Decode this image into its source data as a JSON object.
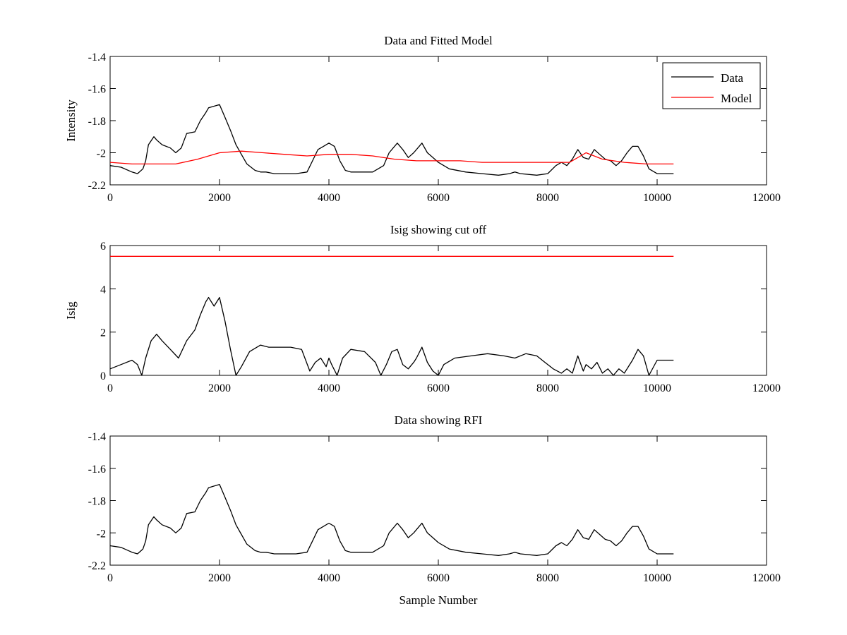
{
  "colors": {
    "data": "#000000",
    "model": "#ff0000",
    "axes": "#000000",
    "background": "#ffffff"
  },
  "chart_data": [
    {
      "type": "line",
      "title": "Data and Fitted Model",
      "xlabel": "",
      "ylabel": "Intensity",
      "xlim": [
        0,
        12000
      ],
      "ylim": [
        -2.2,
        -1.4
      ],
      "xticks": [
        "0",
        "2000",
        "4000",
        "6000",
        "8000",
        "10000",
        "12000"
      ],
      "yticks": [
        "-1.4",
        "-1.6",
        "-1.8",
        "-2",
        "-2.2"
      ],
      "legend": {
        "position": "top-right",
        "entries": [
          "Data",
          "Model"
        ]
      },
      "series": [
        {
          "name": "Data",
          "color": "#000000",
          "x": [
            0,
            200,
            400,
            500,
            600,
            650,
            700,
            800,
            850,
            950,
            1100,
            1200,
            1300,
            1400,
            1550,
            1650,
            1750,
            1800,
            1900,
            2000,
            2100,
            2200,
            2300,
            2400,
            2500,
            2650,
            2750,
            2850,
            3000,
            3200,
            3400,
            3600,
            3700,
            3800,
            3900,
            4000,
            4100,
            4200,
            4300,
            4400,
            4600,
            4800,
            5000,
            5100,
            5250,
            5350,
            5450,
            5550,
            5650,
            5700,
            5800,
            5900,
            6000,
            6200,
            6500,
            6800,
            7100,
            7300,
            7400,
            7500,
            7800,
            8000,
            8150,
            8250,
            8350,
            8450,
            8550,
            8650,
            8750,
            8850,
            8950,
            9050,
            9150,
            9250,
            9350,
            9450,
            9550,
            9650,
            9750,
            9850,
            10000,
            10300
          ],
          "y": [
            -2.08,
            -2.09,
            -2.12,
            -2.13,
            -2.1,
            -2.05,
            -1.95,
            -1.9,
            -1.92,
            -1.95,
            -1.97,
            -2.0,
            -1.97,
            -1.88,
            -1.87,
            -1.8,
            -1.75,
            -1.72,
            -1.71,
            -1.7,
            -1.78,
            -1.86,
            -1.95,
            -2.01,
            -2.07,
            -2.11,
            -2.12,
            -2.12,
            -2.13,
            -2.13,
            -2.13,
            -2.12,
            -2.05,
            -1.98,
            -1.96,
            -1.94,
            -1.96,
            -2.05,
            -2.11,
            -2.12,
            -2.12,
            -2.12,
            -2.08,
            -2.0,
            -1.94,
            -1.98,
            -2.03,
            -2.0,
            -1.96,
            -1.94,
            -2.0,
            -2.03,
            -2.06,
            -2.1,
            -2.12,
            -2.13,
            -2.14,
            -2.13,
            -2.12,
            -2.13,
            -2.14,
            -2.13,
            -2.08,
            -2.06,
            -2.08,
            -2.04,
            -1.98,
            -2.03,
            -2.04,
            -1.98,
            -2.01,
            -2.04,
            -2.05,
            -2.08,
            -2.05,
            -2.0,
            -1.96,
            -1.96,
            -2.02,
            -2.1,
            -2.13,
            -2.13
          ]
        },
        {
          "name": "Model",
          "color": "#ff0000",
          "x": [
            0,
            400,
            800,
            1200,
            1600,
            2000,
            2400,
            2800,
            3200,
            3600,
            4000,
            4400,
            4800,
            5200,
            5600,
            6000,
            6400,
            6800,
            7200,
            7600,
            8000,
            8400,
            8700,
            9000,
            9400,
            9800,
            10300
          ],
          "y": [
            -2.06,
            -2.07,
            -2.07,
            -2.07,
            -2.04,
            -2.0,
            -1.99,
            -2.0,
            -2.01,
            -2.02,
            -2.01,
            -2.01,
            -2.02,
            -2.04,
            -2.05,
            -2.05,
            -2.05,
            -2.06,
            -2.06,
            -2.06,
            -2.06,
            -2.06,
            -2.0,
            -2.04,
            -2.06,
            -2.07,
            -2.07
          ]
        }
      ]
    },
    {
      "type": "line",
      "title": "Isig showing cut off",
      "xlabel": "",
      "ylabel": "Isig",
      "xlim": [
        0,
        12000
      ],
      "ylim": [
        0,
        6
      ],
      "xticks": [
        "0",
        "2000",
        "4000",
        "6000",
        "8000",
        "10000",
        "12000"
      ],
      "yticks": [
        "6",
        "4",
        "2",
        "0"
      ],
      "series": [
        {
          "color": "#000000",
          "x": [
            0,
            200,
            400,
            500,
            580,
            650,
            750,
            850,
            950,
            1100,
            1250,
            1400,
            1550,
            1650,
            1750,
            1800,
            1900,
            2000,
            2100,
            2200,
            2300,
            2400,
            2550,
            2750,
            2900,
            3100,
            3300,
            3500,
            3650,
            3750,
            3850,
            3950,
            4000,
            4050,
            4150,
            4250,
            4400,
            4650,
            4850,
            4950,
            5050,
            5150,
            5250,
            5350,
            5450,
            5550,
            5600,
            5700,
            5800,
            5900,
            6000,
            6100,
            6300,
            6600,
            6900,
            7200,
            7400,
            7600,
            7800,
            7950,
            8100,
            8250,
            8350,
            8450,
            8550,
            8650,
            8700,
            8800,
            8900,
            9000,
            9100,
            9200,
            9300,
            9400,
            9550,
            9650,
            9750,
            9850,
            10000,
            10300
          ],
          "y": [
            0.3,
            0.5,
            0.7,
            0.5,
            0.0,
            0.8,
            1.6,
            1.9,
            1.6,
            1.2,
            0.8,
            1.6,
            2.1,
            2.8,
            3.4,
            3.6,
            3.2,
            3.6,
            2.5,
            1.2,
            0.0,
            0.4,
            1.1,
            1.4,
            1.3,
            1.3,
            1.3,
            1.2,
            0.2,
            0.6,
            0.8,
            0.4,
            0.8,
            0.5,
            0.0,
            0.8,
            1.2,
            1.1,
            0.6,
            0.0,
            0.5,
            1.1,
            1.2,
            0.5,
            0.3,
            0.6,
            0.8,
            1.3,
            0.6,
            0.2,
            0.0,
            0.5,
            0.8,
            0.9,
            1.0,
            0.9,
            0.8,
            1.0,
            0.9,
            0.6,
            0.3,
            0.1,
            0.3,
            0.1,
            0.9,
            0.2,
            0.5,
            0.3,
            0.6,
            0.1,
            0.3,
            0.0,
            0.3,
            0.1,
            0.7,
            1.2,
            0.9,
            0.0,
            0.7,
            0.7
          ]
        },
        {
          "color": "#ff0000",
          "x": [
            0,
            10300
          ],
          "y": [
            5.5,
            5.5
          ]
        }
      ]
    },
    {
      "type": "line",
      "title": "Data showing RFI",
      "xlabel": "Sample Number",
      "ylabel": "",
      "xlim": [
        0,
        12000
      ],
      "ylim": [
        -2.2,
        -1.4
      ],
      "xticks": [
        "0",
        "2000",
        "4000",
        "6000",
        "8000",
        "10000",
        "12000"
      ],
      "yticks": [
        "-1.4",
        "-1.6",
        "-1.8",
        "-2",
        "-2.2"
      ],
      "series": [
        {
          "color": "#000000",
          "x": [
            0,
            200,
            400,
            500,
            600,
            650,
            700,
            800,
            850,
            950,
            1100,
            1200,
            1300,
            1400,
            1550,
            1650,
            1750,
            1800,
            1900,
            2000,
            2100,
            2200,
            2300,
            2400,
            2500,
            2650,
            2750,
            2850,
            3000,
            3200,
            3400,
            3600,
            3700,
            3800,
            3900,
            4000,
            4100,
            4200,
            4300,
            4400,
            4600,
            4800,
            5000,
            5100,
            5250,
            5350,
            5450,
            5550,
            5650,
            5700,
            5800,
            5900,
            6000,
            6200,
            6500,
            6800,
            7100,
            7300,
            7400,
            7500,
            7800,
            8000,
            8150,
            8250,
            8350,
            8450,
            8550,
            8650,
            8750,
            8850,
            8950,
            9050,
            9150,
            9250,
            9350,
            9450,
            9550,
            9650,
            9750,
            9850,
            10000,
            10300
          ],
          "y": [
            -2.08,
            -2.09,
            -2.12,
            -2.13,
            -2.1,
            -2.05,
            -1.95,
            -1.9,
            -1.92,
            -1.95,
            -1.97,
            -2.0,
            -1.97,
            -1.88,
            -1.87,
            -1.8,
            -1.75,
            -1.72,
            -1.71,
            -1.7,
            -1.78,
            -1.86,
            -1.95,
            -2.01,
            -2.07,
            -2.11,
            -2.12,
            -2.12,
            -2.13,
            -2.13,
            -2.13,
            -2.12,
            -2.05,
            -1.98,
            -1.96,
            -1.94,
            -1.96,
            -2.05,
            -2.11,
            -2.12,
            -2.12,
            -2.12,
            -2.08,
            -2.0,
            -1.94,
            -1.98,
            -2.03,
            -2.0,
            -1.96,
            -1.94,
            -2.0,
            -2.03,
            -2.06,
            -2.1,
            -2.12,
            -2.13,
            -2.14,
            -2.13,
            -2.12,
            -2.13,
            -2.14,
            -2.13,
            -2.08,
            -2.06,
            -2.08,
            -2.04,
            -1.98,
            -2.03,
            -2.04,
            -1.98,
            -2.01,
            -2.04,
            -2.05,
            -2.08,
            -2.05,
            -2.0,
            -1.96,
            -1.96,
            -2.02,
            -2.1,
            -2.13,
            -2.13
          ]
        }
      ]
    }
  ]
}
